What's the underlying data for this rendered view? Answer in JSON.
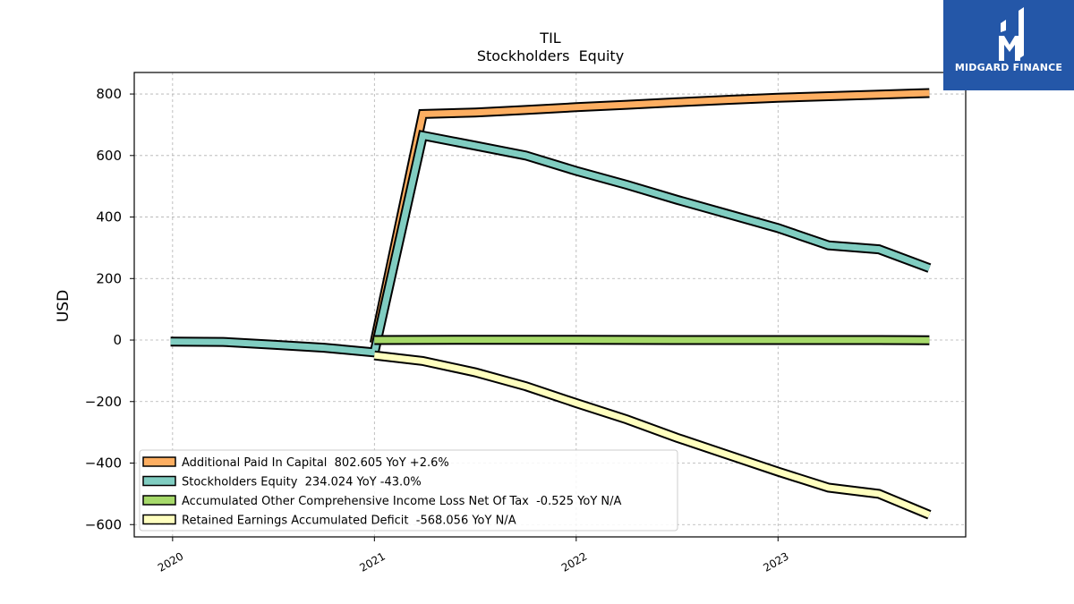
{
  "brand": {
    "name": "MIDGARD FINANCE",
    "bg_color": "#2457a8",
    "icon": "midgard-logo-icon"
  },
  "chart_data": {
    "type": "line",
    "title": "TIL",
    "subtitle": "Stockholders  Equity",
    "ylabel": "USD",
    "xlabel": "",
    "x_ticks": [
      "2020",
      "2021",
      "2022",
      "2023"
    ],
    "y_ticks": [
      800,
      600,
      400,
      200,
      0,
      -200,
      -400,
      -600
    ],
    "ylim": [
      -640,
      870
    ],
    "xlim": [
      2019.81,
      2023.93
    ],
    "grid": true,
    "legend_position": "lower-left",
    "series": [
      {
        "name": "Additional Paid In Capital  802.605 YoY +2.6%",
        "color": "#fdae61",
        "x": [
          2021.0,
          2021.24,
          2021.5,
          2021.75,
          2022.0,
          2022.25,
          2022.5,
          2022.75,
          2023.0,
          2023.25,
          2023.5,
          2023.75
        ],
        "y": [
          -10,
          735,
          740,
          748,
          757,
          765,
          773,
          781,
          788,
          793,
          798,
          803
        ]
      },
      {
        "name": "Stockholders Equity  234.024 YoY -43.0%",
        "color": "#80cdc1",
        "x": [
          2019.99,
          2020.25,
          2020.5,
          2020.75,
          2021.0,
          2021.24,
          2021.5,
          2021.75,
          2022.0,
          2022.25,
          2022.5,
          2022.75,
          2023.0,
          2023.25,
          2023.5,
          2023.75
        ],
        "y": [
          -5,
          -6,
          -15,
          -25,
          -40,
          665,
          632,
          600,
          550,
          505,
          456,
          410,
          364,
          308,
          295,
          234
        ]
      },
      {
        "name": "Accumulated Other Comprehensive Income Loss Net Of Tax  -0.525 YoY N/A",
        "color": "#a6d96a",
        "x": [
          2021.0,
          2021.5,
          2022.0,
          2022.5,
          2023.0,
          2023.5,
          2023.75
        ],
        "y": [
          0,
          1,
          1,
          0,
          0,
          0,
          -0.5
        ]
      },
      {
        "name": "Retained Earnings Accumulated Deficit  -568.056 YoY N/A",
        "color": "#ffffbf",
        "x": [
          2021.0,
          2021.24,
          2021.5,
          2021.75,
          2022.0,
          2022.25,
          2022.5,
          2022.75,
          2023.0,
          2023.25,
          2023.5,
          2023.75
        ],
        "y": [
          -50,
          -68,
          -105,
          -150,
          -205,
          -258,
          -318,
          -373,
          -428,
          -480,
          -500,
          -568
        ]
      }
    ]
  }
}
